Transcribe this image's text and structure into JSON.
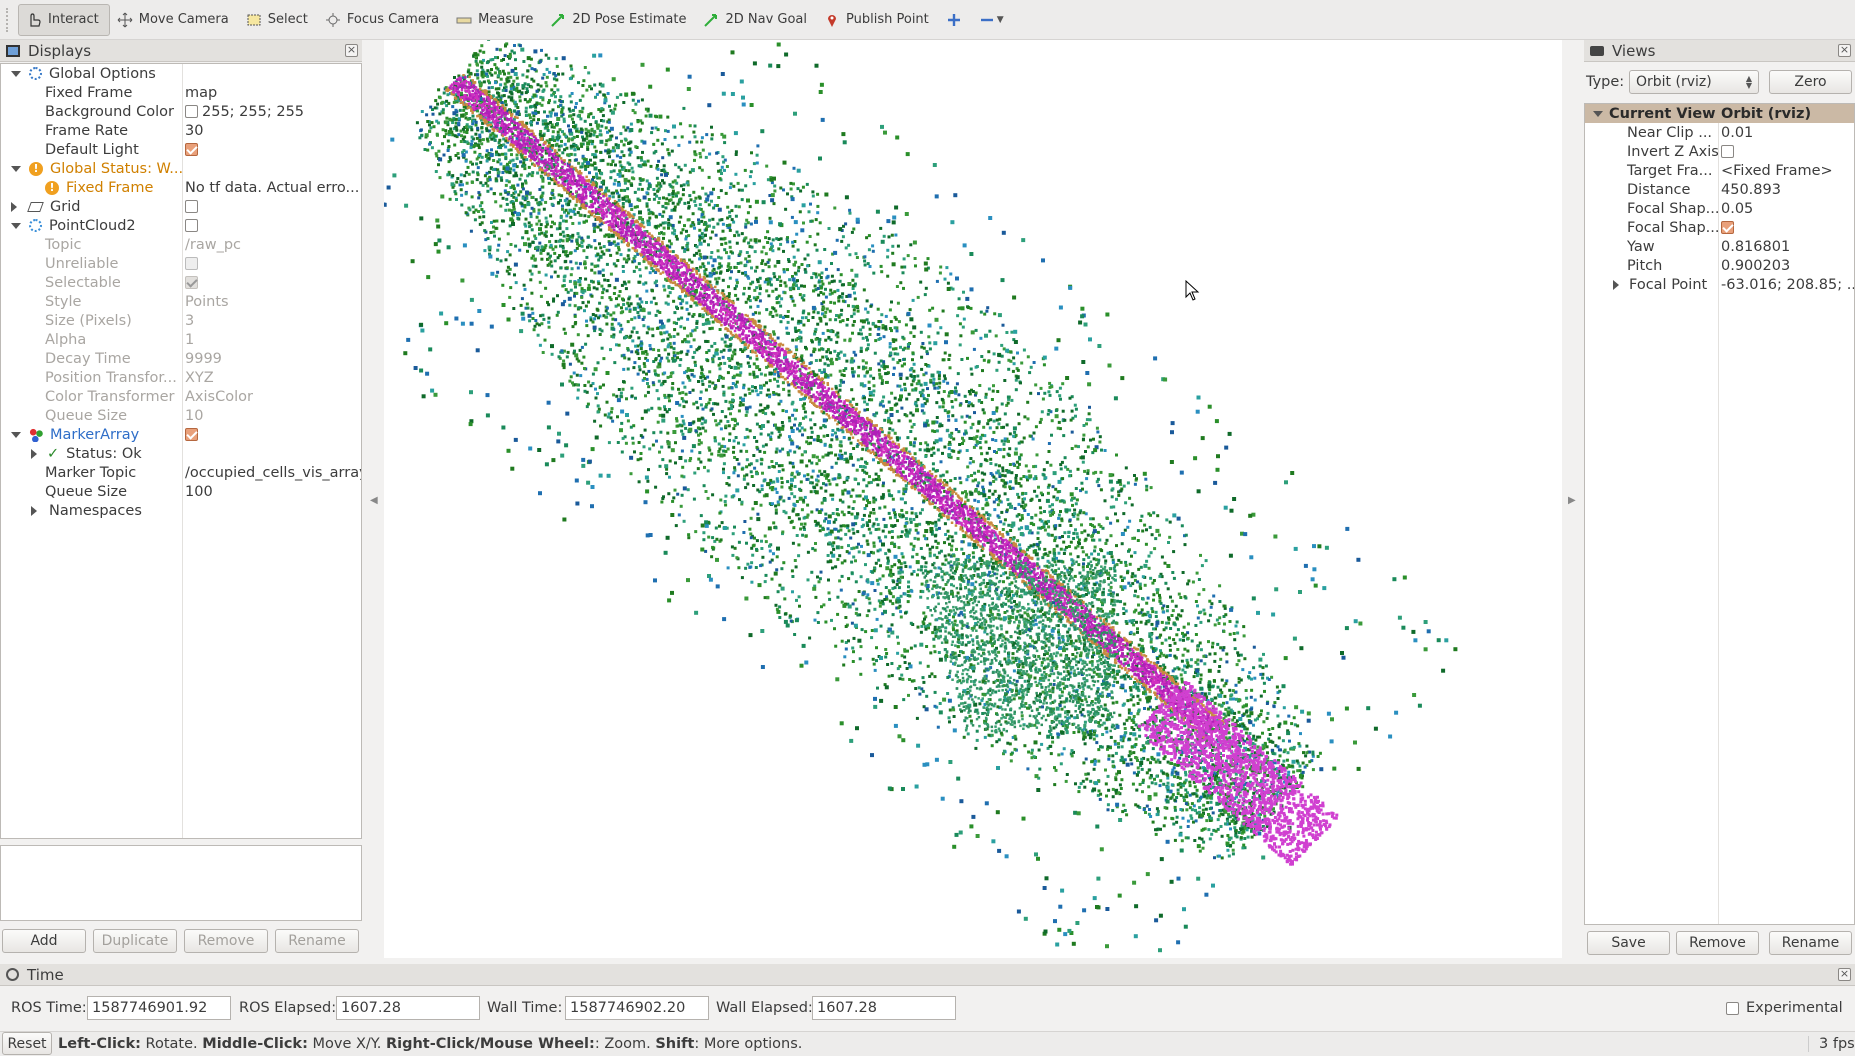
{
  "toolbar": {
    "tools": [
      {
        "label": "Interact",
        "icon": "hand-pointer-icon"
      },
      {
        "label": "Move Camera",
        "icon": "move-camera-icon"
      },
      {
        "label": "Select",
        "icon": "select-box-icon"
      },
      {
        "label": "Focus Camera",
        "icon": "focus-camera-icon"
      },
      {
        "label": "Measure",
        "icon": "ruler-icon"
      },
      {
        "label": "2D Pose Estimate",
        "icon": "green-arrow-icon"
      },
      {
        "label": "2D Nav Goal",
        "icon": "green-arrow-icon"
      },
      {
        "label": "Publish Point",
        "icon": "map-pin-icon"
      }
    ]
  },
  "displays": {
    "title": "Displays",
    "rows": [
      {
        "key": "Global Options",
        "value": ""
      },
      {
        "key": "Fixed Frame",
        "value": "map"
      },
      {
        "key": "Background Color",
        "value": "255; 255; 255"
      },
      {
        "key": "Frame Rate",
        "value": "30"
      },
      {
        "key": "Default Light",
        "value": ""
      },
      {
        "key": "Global Status: W...",
        "value": ""
      },
      {
        "key": "Fixed Frame",
        "value": "No tf data.  Actual erro..."
      },
      {
        "key": "Grid",
        "value": ""
      },
      {
        "key": "PointCloud2",
        "value": ""
      },
      {
        "key": "Topic",
        "value": "/raw_pc"
      },
      {
        "key": "Unreliable",
        "value": ""
      },
      {
        "key": "Selectable",
        "value": ""
      },
      {
        "key": "Style",
        "value": "Points"
      },
      {
        "key": "Size (Pixels)",
        "value": "3"
      },
      {
        "key": "Alpha",
        "value": "1"
      },
      {
        "key": "Decay Time",
        "value": "9999"
      },
      {
        "key": "Position Transfor...",
        "value": "XYZ"
      },
      {
        "key": "Color Transformer",
        "value": "AxisColor"
      },
      {
        "key": "Queue Size",
        "value": "10"
      },
      {
        "key": "MarkerArray",
        "value": ""
      },
      {
        "key": "Status: Ok",
        "value": ""
      },
      {
        "key": "Marker Topic",
        "value": "/occupied_cells_vis_array"
      },
      {
        "key": "Queue Size",
        "value": "100"
      },
      {
        "key": "Namespaces",
        "value": ""
      }
    ],
    "buttons": {
      "add": "Add",
      "duplicate": "Duplicate",
      "remove": "Remove",
      "rename": "Rename"
    }
  },
  "views": {
    "title": "Views",
    "type_label": "Type:",
    "type_value": "Orbit (rviz)",
    "zero": "Zero",
    "header": {
      "key": "Current View",
      "value": "Orbit (rviz)"
    },
    "rows": [
      {
        "key": "Near Clip ...",
        "value": "0.01"
      },
      {
        "key": "Invert Z Axis",
        "value": ""
      },
      {
        "key": "Target Fra...",
        "value": "<Fixed Frame>"
      },
      {
        "key": "Distance",
        "value": "450.893"
      },
      {
        "key": "Focal Shap...",
        "value": "0.05"
      },
      {
        "key": "Focal Shap...",
        "value": ""
      },
      {
        "key": "Yaw",
        "value": "0.816801"
      },
      {
        "key": "Pitch",
        "value": "0.900203"
      },
      {
        "key": "Focal Point",
        "value": "-63.016; 208.85; ..."
      }
    ],
    "buttons": {
      "save": "Save",
      "remove": "Remove",
      "rename": "Rename"
    }
  },
  "time": {
    "title": "Time",
    "ros_time_label": "ROS Time:",
    "ros_time": "1587746901.92",
    "ros_elapsed_label": "ROS Elapsed:",
    "ros_elapsed": "1607.28",
    "wall_time_label": "Wall Time:",
    "wall_time": "1587746902.20",
    "wall_elapsed_label": "Wall Elapsed:",
    "wall_elapsed": "1607.28",
    "experimental": "Experimental"
  },
  "status": {
    "reset": "Reset",
    "b1": "Left-Click:",
    "t1": " Rotate. ",
    "b2": "Middle-Click:",
    "t2": " Move X/Y. ",
    "b3": "Right-Click/Mouse Wheel:",
    "t3": ": Zoom. ",
    "b4": "Shift",
    "t4": ": More options.",
    "fps": "3 fps"
  }
}
